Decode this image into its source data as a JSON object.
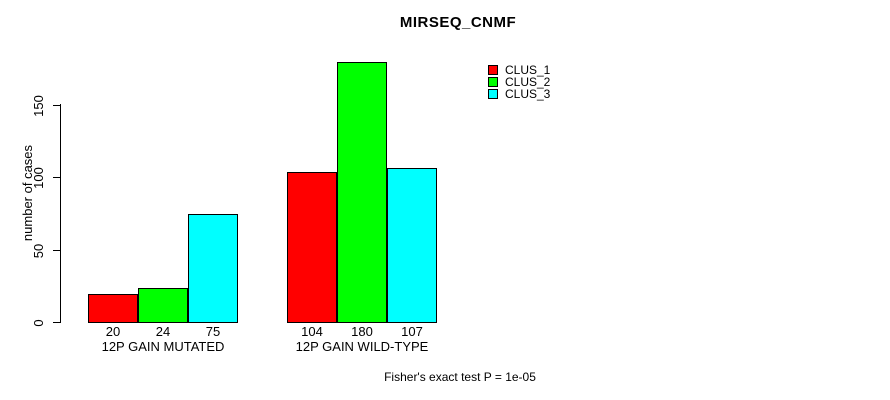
{
  "chart_data": {
    "type": "bar",
    "title": "MIRSEQ_CNMF",
    "ylabel": "number of cases",
    "xlabel": "",
    "categories": [
      "12P GAIN MUTATED",
      "12P GAIN WILD-TYPE"
    ],
    "series": [
      {
        "name": "CLUS_1",
        "color": "#ff0000",
        "values": [
          20,
          104
        ]
      },
      {
        "name": "CLUS_2",
        "color": "#00ff00",
        "values": [
          24,
          180
        ]
      },
      {
        "name": "CLUS_3",
        "color": "#00ffff",
        "values": [
          75,
          107
        ]
      }
    ],
    "yticks": [
      0,
      50,
      100,
      150
    ],
    "ylim": [
      0,
      180
    ],
    "grid": false,
    "legend_position": "topright",
    "bar_value_labels_shown": true,
    "bar_border_color": "#000000",
    "footnote": "Fisher's exact test P = 1e-05"
  }
}
